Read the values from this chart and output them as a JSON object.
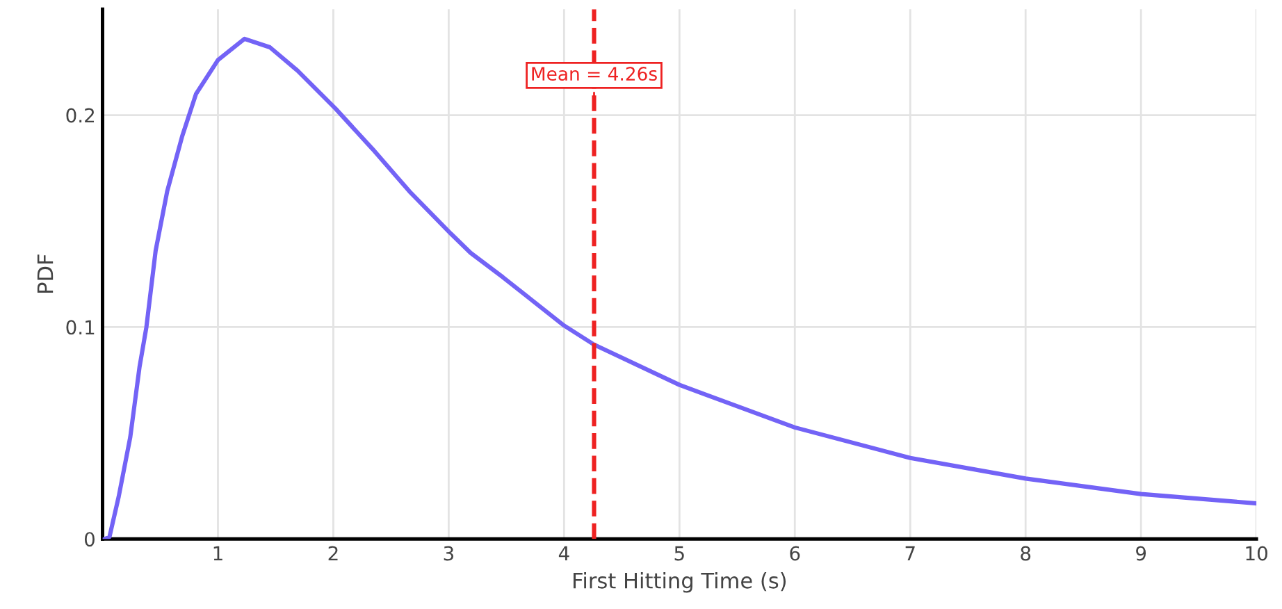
{
  "chart_data": {
    "type": "line",
    "xlabel": "First Hitting Time (s)",
    "ylabel": "PDF",
    "xlim": [
      0,
      10
    ],
    "xticks": [
      1,
      2,
      3,
      4,
      5,
      6,
      7,
      8,
      9,
      10
    ],
    "ylim": [
      0,
      0.25
    ],
    "yticks": [
      0,
      0.1,
      0.2
    ],
    "grid": true,
    "legend": false,
    "marker": "none",
    "line_style": "solid",
    "series": [
      {
        "color": "#7363f6",
        "x": [
          0.02,
          0.06,
          0.14,
          0.24,
          0.32,
          0.38,
          0.46,
          0.56,
          0.69,
          0.81,
          1.0,
          1.23,
          1.45,
          1.69,
          2.02,
          2.34,
          2.66,
          3.02,
          3.19,
          3.47,
          4.0,
          4.26,
          5.0,
          6.0,
          7.0,
          8.0,
          9.0,
          10.0
        ],
        "values": [
          0,
          0.001,
          0.02,
          0.048,
          0.081,
          0.1,
          0.136,
          0.164,
          0.19,
          0.21,
          0.226,
          0.236,
          0.232,
          0.221,
          0.203,
          0.184,
          0.164,
          0.144,
          0.135,
          0.1235,
          0.1007,
          0.0917,
          0.0727,
          0.0526,
          0.0382,
          0.0285,
          0.0212,
          0.0168
        ]
      }
    ],
    "ref_lines": [
      {
        "axis": "x",
        "value": 4.26,
        "label": "Mean = 4.26s",
        "color": "#ee2222",
        "line_style": "dashed"
      }
    ]
  }
}
